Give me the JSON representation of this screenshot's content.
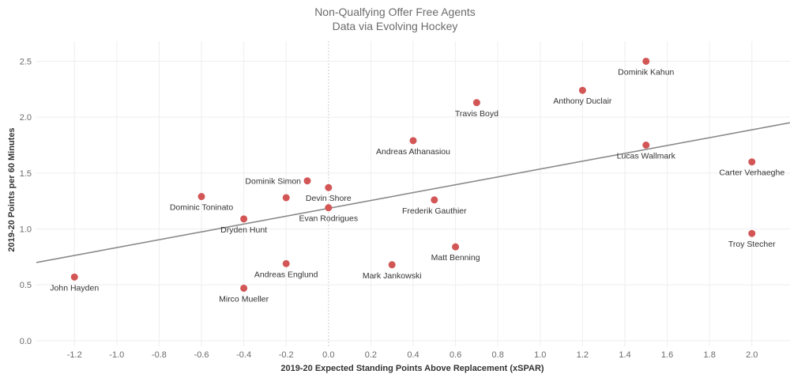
{
  "chart_data": {
    "type": "scatter",
    "title": "Non-Qualfying Offer Free Agents",
    "subtitle": "Data via Evolving Hockey",
    "xlabel": "2019-20 Expected Standing Points Above Replacement (xSPAR)",
    "ylabel": "2019-20 Points per 60 Minutes",
    "xlim": [
      -1.38,
      2.18
    ],
    "ylim": [
      -0.05,
      2.68
    ],
    "xticks": [
      "-1.2",
      "-1.0",
      "-0.8",
      "-0.6",
      "-0.4",
      "-0.2",
      "0.0",
      "0.2",
      "0.4",
      "0.6",
      "0.8",
      "1.0",
      "1.2",
      "1.4",
      "1.6",
      "1.8",
      "2.0"
    ],
    "yticks": [
      "0.0",
      "0.5",
      "1.0",
      "1.5",
      "2.0",
      "2.5"
    ],
    "point_color": "#d35656",
    "trend_color": "#8a8a8a",
    "grid": true,
    "trendline": {
      "x": [
        -1.38,
        2.18
      ],
      "y": [
        0.7,
        1.95
      ]
    },
    "points": [
      {
        "name": "Dominik Kahun",
        "x": 1.5,
        "y": 2.5
      },
      {
        "name": "Anthony Duclair",
        "x": 1.2,
        "y": 2.24
      },
      {
        "name": "Travis Boyd",
        "x": 0.7,
        "y": 2.13
      },
      {
        "name": "Andreas Athanasiou",
        "x": 0.4,
        "y": 1.79
      },
      {
        "name": "Lucas Wallmark",
        "x": 1.5,
        "y": 1.75
      },
      {
        "name": "Carter Verhaeghe",
        "x": 2.0,
        "y": 1.6
      },
      {
        "name": "Dominik Simon",
        "x": -0.1,
        "y": 1.43
      },
      {
        "name": "Devin Shore",
        "x": 0.0,
        "y": 1.37
      },
      {
        "name": "Dominic Toninato",
        "x": -0.6,
        "y": 1.29
      },
      {
        "name": "",
        "x": -0.2,
        "y": 1.28
      },
      {
        "name": "Frederik Gauthier",
        "x": 0.5,
        "y": 1.26
      },
      {
        "name": "Evan Rodrigues",
        "x": 0.0,
        "y": 1.19
      },
      {
        "name": "Dryden Hunt",
        "x": -0.4,
        "y": 1.09
      },
      {
        "name": "Troy Stecher",
        "x": 2.0,
        "y": 0.96
      },
      {
        "name": "Matt Benning",
        "x": 0.6,
        "y": 0.84
      },
      {
        "name": "Andreas Englund",
        "x": -0.2,
        "y": 0.69
      },
      {
        "name": "Mark Jankowski",
        "x": 0.3,
        "y": 0.68
      },
      {
        "name": "John Hayden",
        "x": -1.2,
        "y": 0.57
      },
      {
        "name": "Mirco Mueller",
        "x": -0.4,
        "y": 0.47
      }
    ]
  }
}
